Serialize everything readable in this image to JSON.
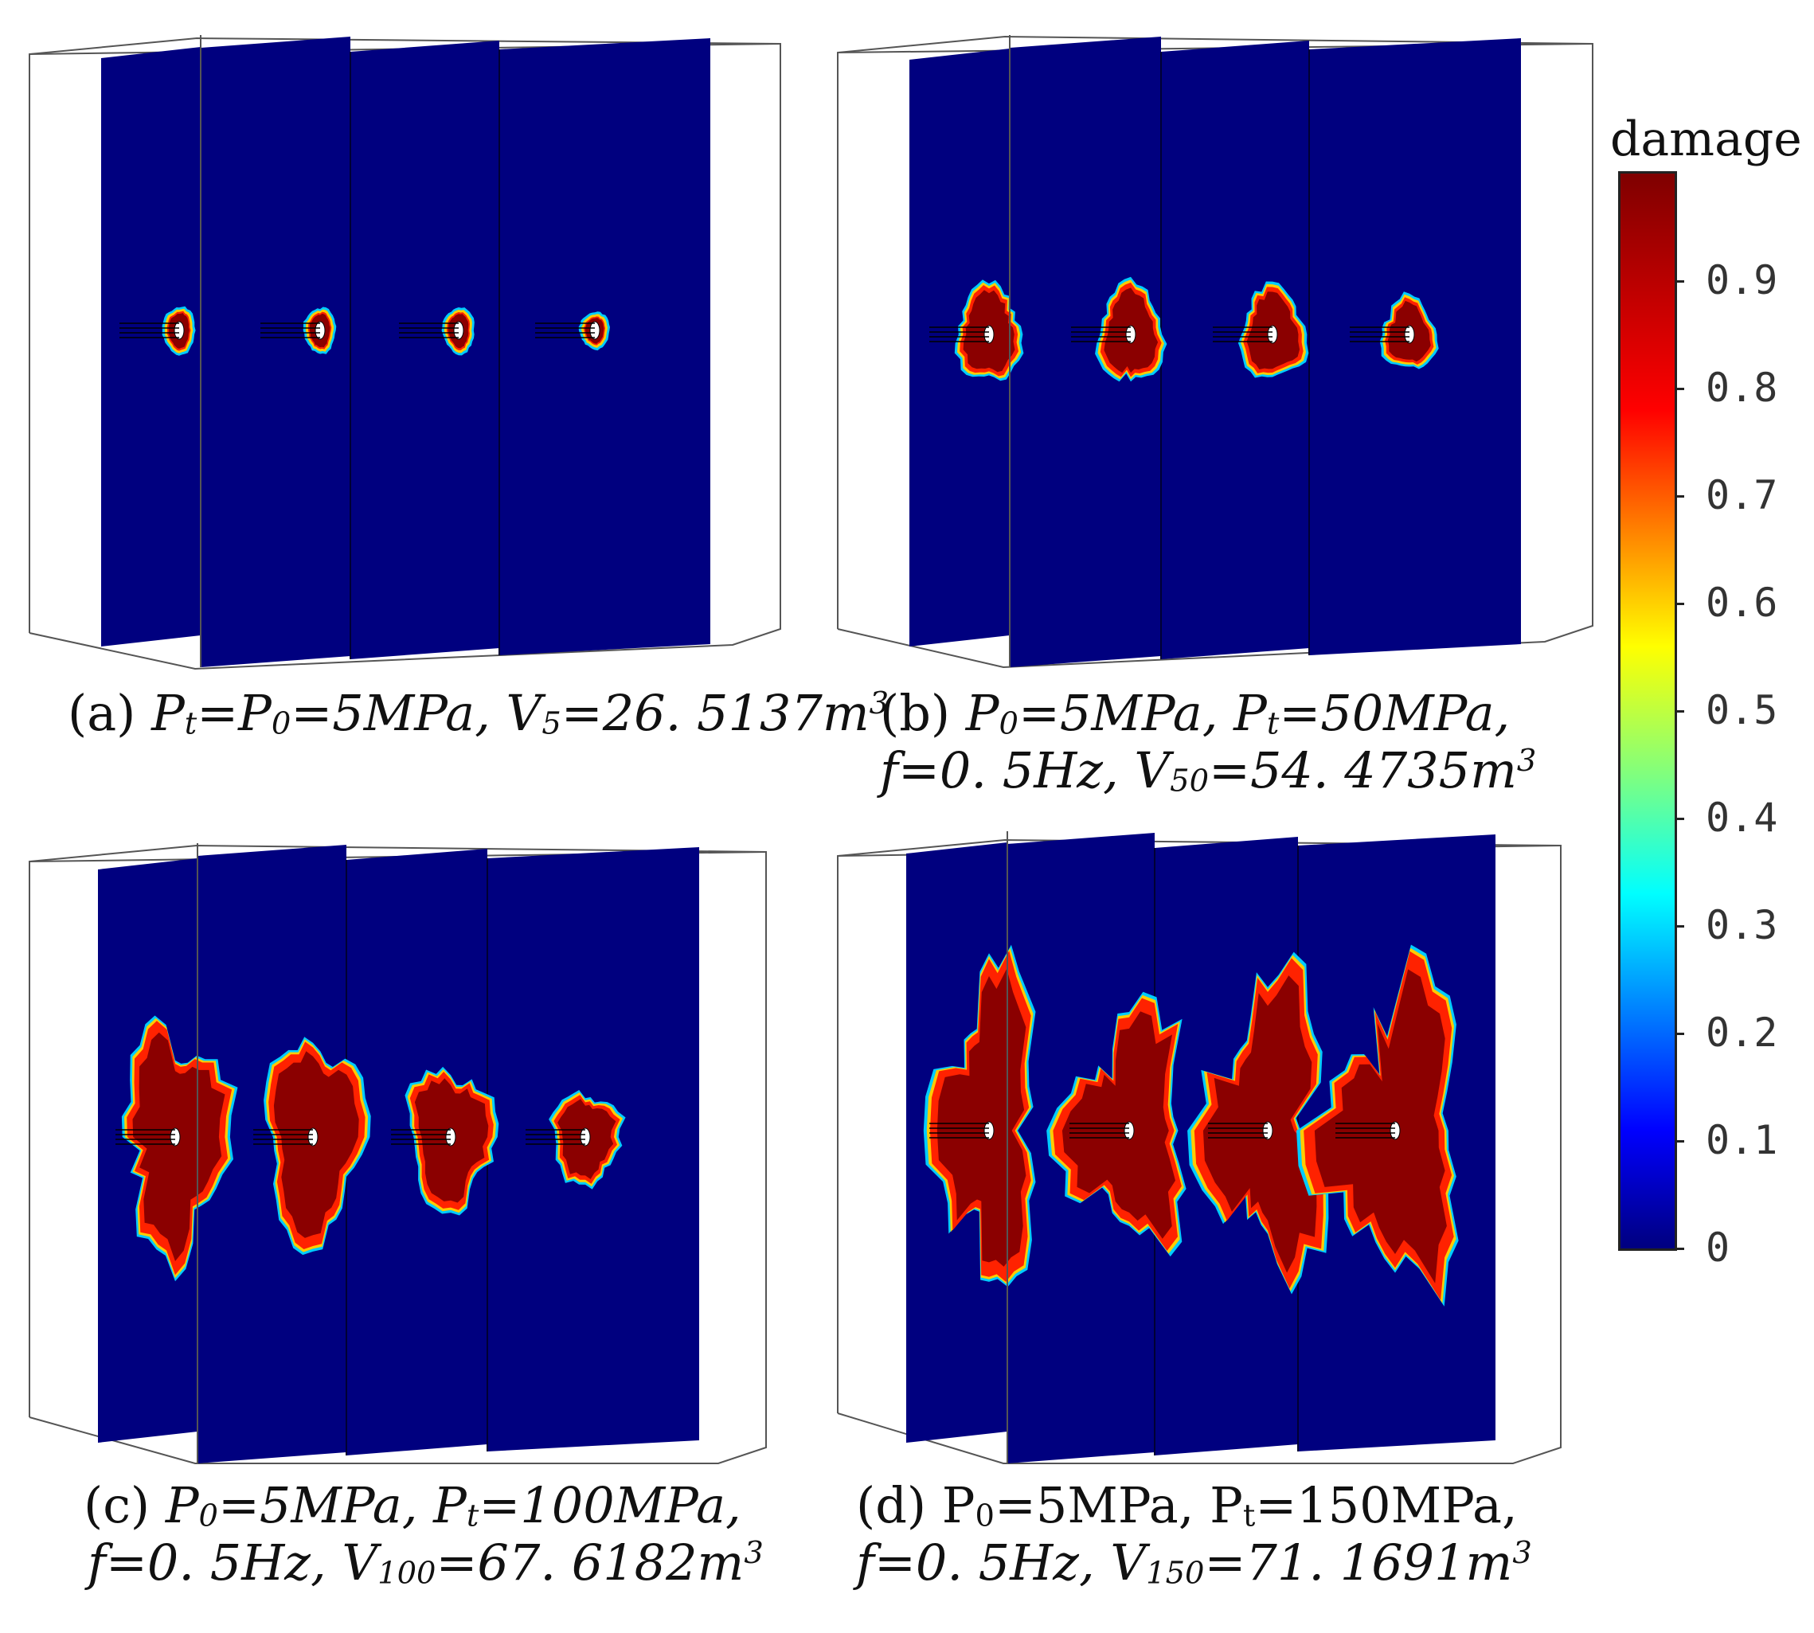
{
  "figure": {
    "panels": [
      {
        "id": "a",
        "caption_lines": [
          [
            {
              "t": "(a) ",
              "it": false
            },
            {
              "t": "P",
              "it": true
            },
            {
              "t": "t",
              "it": true,
              "sub": true
            },
            {
              "t": "=P",
              "it": true
            },
            {
              "t": "0",
              "it": true,
              "sub": true
            },
            {
              "t": "=5MPa, V",
              "it": true
            },
            {
              "t": "5",
              "it": true,
              "sub": true
            },
            {
              "t": "=26. 5137m",
              "it": true
            },
            {
              "t": "3",
              "it": true,
              "sup": true
            }
          ]
        ],
        "damage_zones": [
          {
            "rx": 0.5,
            "ry": 0.85,
            "irregularity": 0.1
          },
          {
            "rx": 0.5,
            "ry": 0.8,
            "irregularity": 0.1
          },
          {
            "rx": 0.5,
            "ry": 0.8,
            "irregularity": 0.1
          },
          {
            "rx": 0.45,
            "ry": 0.6,
            "irregularity": 0.1
          }
        ]
      },
      {
        "id": "b",
        "caption_lines": [
          [
            {
              "t": "(b) ",
              "it": false
            },
            {
              "t": "P",
              "it": true
            },
            {
              "t": "0",
              "it": true,
              "sub": true
            },
            {
              "t": "=5MPa, P",
              "it": true
            },
            {
              "t": "t",
              "it": true,
              "sub": true
            },
            {
              "t": "=50MPa,",
              "it": true
            }
          ],
          [
            {
              "t": "f=0. 5Hz, V",
              "it": true
            },
            {
              "t": "50",
              "it": true,
              "sub": true
            },
            {
              "t": "=54. 4735m",
              "it": true
            },
            {
              "t": "3",
              "it": true,
              "sup": true
            }
          ]
        ],
        "damage_zones": [
          {
            "rx": 1.2,
            "ry": 1.9,
            "irregularity": 0.2
          },
          {
            "rx": 1.2,
            "ry": 1.9,
            "irregularity": 0.2
          },
          {
            "rx": 1.2,
            "ry": 1.8,
            "irregularity": 0.2
          },
          {
            "rx": 1.0,
            "ry": 1.4,
            "irregularity": 0.2
          }
        ]
      },
      {
        "id": "c",
        "caption_lines": [
          [
            {
              "t": "(c) ",
              "it": false
            },
            {
              "t": "P",
              "it": true
            },
            {
              "t": "0",
              "it": true,
              "sub": true
            },
            {
              "t": "=5MPa, P",
              "it": true
            },
            {
              "t": "t",
              "it": true,
              "sub": true
            },
            {
              "t": "=100MPa,",
              "it": true
            }
          ],
          [
            {
              "t": "f=0. 5Hz, V",
              "it": true
            },
            {
              "t": "100",
              "it": true,
              "sub": true
            },
            {
              "t": "=67. 6182m",
              "it": true
            },
            {
              "t": "3",
              "it": true,
              "sup": true
            }
          ]
        ],
        "damage_zones": [
          {
            "rx": 2.0,
            "ry": 4.6,
            "irregularity": 0.35
          },
          {
            "rx": 1.9,
            "ry": 4.1,
            "irregularity": 0.25
          },
          {
            "rx": 1.7,
            "ry": 2.8,
            "irregularity": 0.25
          },
          {
            "rx": 1.3,
            "ry": 1.8,
            "irregularity": 0.25
          }
        ]
      },
      {
        "id": "d",
        "caption_lines": [
          [
            {
              "t": "(d) P",
              "it": false
            },
            {
              "t": "0",
              "it": false,
              "sub": true
            },
            {
              "t": "=5MPa, P",
              "it": false
            },
            {
              "t": "t",
              "it": false,
              "sub": true
            },
            {
              "t": "=150MPa,",
              "it": false
            }
          ],
          [
            {
              "t": "f=0. 5Hz, V",
              "it": true
            },
            {
              "t": "150",
              "it": true,
              "sub": true
            },
            {
              "t": "=71. 1691m",
              "it": true
            },
            {
              "t": "3",
              "it": true,
              "sup": true
            }
          ]
        ],
        "damage_zones": [
          {
            "rx": 1.9,
            "ry": 6.2,
            "irregularity": 0.45
          },
          {
            "rx": 2.4,
            "ry": 4.4,
            "irregularity": 0.45
          },
          {
            "rx": 2.2,
            "ry": 5.8,
            "irregularity": 0.5
          },
          {
            "rx": 2.6,
            "ry": 5.6,
            "irregularity": 0.55
          }
        ]
      }
    ]
  },
  "colorbar": {
    "title": "damage",
    "ticks": [
      "0.9",
      "0.8",
      "0.7",
      "0.6",
      "0.5",
      "0.4",
      "0.3",
      "0.2",
      "0.1",
      "0"
    ],
    "tick_values": [
      0.9,
      0.8,
      0.7,
      0.6,
      0.5,
      0.4,
      0.3,
      0.2,
      0.1,
      0.0
    ]
  },
  "colors": {
    "background_field": "#00007f",
    "damage_high": "#8b0000",
    "damage_mid": "#ff2200",
    "damage_low": "#ffcc00",
    "damage_edge": "#00ccff"
  }
}
